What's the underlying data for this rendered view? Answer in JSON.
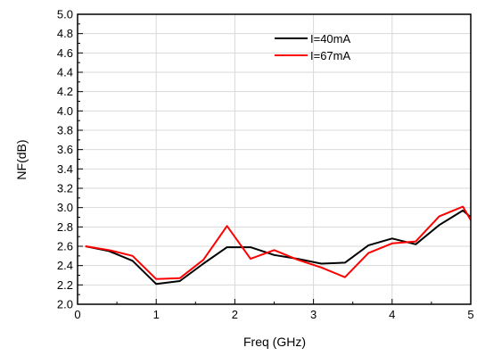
{
  "chart_data": {
    "type": "line",
    "title": "",
    "xlabel": "Freq (GHz)",
    "ylabel": "NF(dB)",
    "xlim": [
      0,
      5
    ],
    "ylim": [
      2.0,
      5.0
    ],
    "x_ticks": [
      "0",
      "1",
      "2",
      "3",
      "4",
      "5"
    ],
    "y_ticks": [
      "2.0",
      "2.2",
      "2.4",
      "2.6",
      "2.8",
      "3.0",
      "3.2",
      "3.4",
      "3.6",
      "3.8",
      "4.0",
      "4.2",
      "4.4",
      "4.6",
      "4.8",
      "5.0"
    ],
    "grid": true,
    "legend_position": "top-right",
    "series": [
      {
        "name": "I=40mA",
        "color": "#000000",
        "x": [
          0.1,
          0.4,
          0.7,
          1.0,
          1.3,
          1.6,
          1.9,
          2.2,
          2.5,
          2.8,
          3.1,
          3.4,
          3.7,
          4.0,
          4.3,
          4.6,
          4.9,
          5.0
        ],
        "y": [
          2.6,
          2.55,
          2.45,
          2.21,
          2.24,
          2.42,
          2.59,
          2.59,
          2.51,
          2.47,
          2.42,
          2.43,
          2.61,
          2.68,
          2.62,
          2.82,
          2.97,
          2.9
        ]
      },
      {
        "name": "I=67mA",
        "color": "#ff0000",
        "x": [
          0.1,
          0.4,
          0.7,
          1.0,
          1.3,
          1.6,
          1.9,
          2.2,
          2.5,
          2.8,
          3.1,
          3.4,
          3.7,
          4.0,
          4.3,
          4.6,
          4.9,
          5.0
        ],
        "y": [
          2.6,
          2.56,
          2.5,
          2.26,
          2.27,
          2.46,
          2.81,
          2.47,
          2.56,
          2.46,
          2.38,
          2.28,
          2.53,
          2.63,
          2.65,
          2.91,
          3.01,
          2.87
        ]
      }
    ]
  }
}
